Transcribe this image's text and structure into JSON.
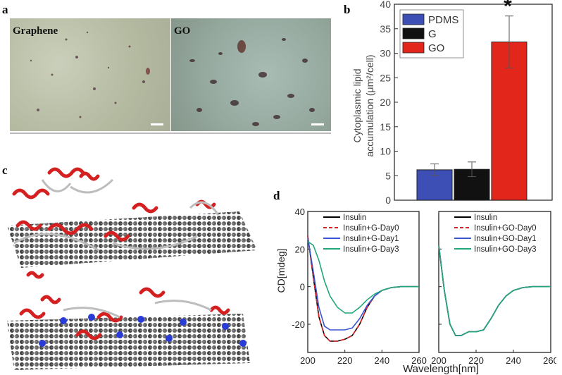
{
  "panels": {
    "a": "a",
    "b": "b",
    "c": "c",
    "d": "d"
  },
  "panel_a": {
    "left_label": "Graphene",
    "right_label": "GO"
  },
  "chart_data": [
    {
      "type": "bar",
      "panel": "b",
      "categories": [
        "PDMS",
        "G",
        "GO"
      ],
      "values": [
        6.2,
        6.3,
        32.3
      ],
      "errors": [
        1.2,
        1.5,
        5.3
      ],
      "colors": [
        "#3d4fb5",
        "#111111",
        "#e3261b"
      ],
      "ylabel_line1": "Cytoplasmic lipid",
      "ylabel_line2": "accumulation (μm²/cell)",
      "ylim": [
        0,
        40
      ],
      "yticks": [
        "0",
        "5",
        "10",
        "15",
        "20",
        "25",
        "30",
        "35",
        "40"
      ],
      "legend": [
        "PDMS",
        "G",
        "GO"
      ],
      "legend_position": "top-left",
      "annotation": "*"
    },
    {
      "type": "line",
      "panel": "d-left",
      "x_label": "Wavelength[nm]",
      "y_label": "CD[mdeg]",
      "xlim": [
        200,
        260
      ],
      "ylim": [
        -35,
        40
      ],
      "xticks": [
        "200",
        "220",
        "240",
        "260"
      ],
      "yticks": [
        "-20",
        "0",
        "20",
        "40"
      ],
      "legend_position": "top-right",
      "series": [
        {
          "name": "Insulin",
          "color": "#000000",
          "dash": "",
          "x": [
            200,
            203,
            206,
            209,
            212,
            216,
            220,
            224,
            228,
            232,
            236,
            240,
            245,
            250,
            255,
            260
          ],
          "y": [
            27,
            5,
            -16,
            -26,
            -29,
            -29,
            -28,
            -26,
            -20,
            -11,
            -5,
            -2,
            -0.5,
            0,
            0,
            0
          ]
        },
        {
          "name": "Insulin+G-Day0",
          "color": "#e02020",
          "dash": "6,4",
          "x": [
            200,
            203,
            206,
            209,
            212,
            216,
            220,
            224,
            228,
            232,
            236,
            240,
            245,
            250,
            255,
            260
          ],
          "y": [
            27,
            5,
            -16,
            -26,
            -29,
            -29,
            -28,
            -26,
            -20,
            -11,
            -5,
            -2,
            -0.5,
            0,
            0,
            0
          ]
        },
        {
          "name": "Insulin+G-Day1",
          "color": "#3a56d4",
          "dash": "",
          "x": [
            200,
            203,
            206,
            209,
            212,
            216,
            220,
            224,
            228,
            232,
            236,
            240,
            245,
            250,
            255,
            260
          ],
          "y": [
            26,
            8,
            -11,
            -21,
            -23,
            -23,
            -23,
            -22,
            -17,
            -10,
            -5,
            -2,
            -0.5,
            0,
            0,
            0
          ]
        },
        {
          "name": "Insulin+G-Day3",
          "color": "#22a77a",
          "dash": "",
          "x": [
            200,
            203,
            206,
            209,
            212,
            216,
            220,
            224,
            228,
            232,
            236,
            240,
            245,
            250,
            255,
            260
          ],
          "y": [
            24,
            22,
            14,
            3,
            -5,
            -11,
            -14,
            -14,
            -11,
            -7,
            -4,
            -2,
            -0.5,
            0,
            0,
            0
          ]
        }
      ]
    },
    {
      "type": "line",
      "panel": "d-right",
      "x_label": "",
      "y_label": "",
      "xlim": [
        200,
        260
      ],
      "ylim": [
        -35,
        40
      ],
      "xticks": [
        "200",
        "220",
        "240",
        "260"
      ],
      "legend_position": "top-right",
      "series": [
        {
          "name": "Insulin",
          "color": "#000000",
          "dash": "",
          "x": [
            200,
            203,
            206,
            209,
            212,
            216,
            220,
            224,
            228,
            232,
            236,
            240,
            245,
            250,
            255,
            260
          ],
          "y": [
            22,
            -2,
            -20,
            -26,
            -26,
            -24,
            -24,
            -23,
            -17,
            -10,
            -5,
            -2,
            -0.5,
            0,
            0,
            0
          ]
        },
        {
          "name": "Insulin+GO-Day0",
          "color": "#e02020",
          "dash": "6,4",
          "x": [
            200,
            203,
            206,
            209,
            212,
            216,
            220,
            224,
            228,
            232,
            236,
            240,
            245,
            250,
            255,
            260
          ],
          "y": [
            22,
            -2,
            -20,
            -26,
            -26,
            -24,
            -24,
            -23,
            -17,
            -10,
            -5,
            -2,
            -0.5,
            0,
            0,
            0
          ]
        },
        {
          "name": "Insulin+GO-Day1",
          "color": "#3a56d4",
          "dash": "",
          "x": [
            200,
            203,
            206,
            209,
            212,
            216,
            220,
            224,
            228,
            232,
            236,
            240,
            245,
            250,
            255,
            260
          ],
          "y": [
            22,
            -2,
            -20,
            -26,
            -26,
            -24,
            -24,
            -23,
            -17,
            -10,
            -5,
            -2,
            -0.5,
            0,
            0,
            0
          ]
        },
        {
          "name": "Insulin+GO-Day3",
          "color": "#22a77a",
          "dash": "",
          "x": [
            200,
            203,
            206,
            209,
            212,
            216,
            220,
            224,
            228,
            232,
            236,
            240,
            245,
            250,
            255,
            260
          ],
          "y": [
            22,
            -2,
            -20,
            -26,
            -26,
            -24,
            -24,
            -23,
            -17,
            -10,
            -5,
            -2,
            -0.5,
            0,
            0,
            0
          ]
        }
      ]
    }
  ]
}
